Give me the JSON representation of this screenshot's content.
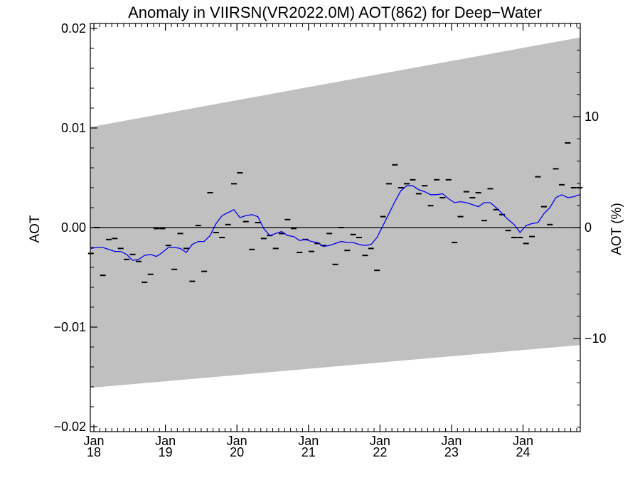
{
  "chart_data": {
    "type": "line",
    "title": "Anomaly in VIIRSN(VR2022.0M) AOT(862) for Deep−Water",
    "ylabel": "AOT",
    "y2label": "AOT (%)",
    "xlabel": "",
    "ylim": [
      -0.0205,
      0.0205
    ],
    "y2lim": [
      -18.4,
      18.4
    ],
    "xlim": [
      2017.95,
      2024.8
    ],
    "yticks": [
      {
        "value": 0.02,
        "label": "0.02"
      },
      {
        "value": 0.01,
        "label": "0.01"
      },
      {
        "value": 0.0,
        "label": "0.00"
      },
      {
        "value": -0.01,
        "label": "−0.01"
      },
      {
        "value": -0.02,
        "label": "−0.02"
      }
    ],
    "y2ticks": [
      {
        "value": 10,
        "label": "10"
      },
      {
        "value": 0,
        "label": "0"
      },
      {
        "value": -10,
        "label": "−10"
      }
    ],
    "xticks": [
      {
        "value": 2018,
        "month": "Jan",
        "year": "18"
      },
      {
        "value": 2019,
        "month": "Jan",
        "year": "19"
      },
      {
        "value": 2020,
        "month": "Jan",
        "year": "20"
      },
      {
        "value": 2021,
        "month": "Jan",
        "year": "21"
      },
      {
        "value": 2022,
        "month": "Jan",
        "year": "22"
      },
      {
        "value": 2023,
        "month": "Jan",
        "year": "23"
      },
      {
        "value": 2024,
        "month": "Jan",
        "year": "24"
      }
    ],
    "band": {
      "x": [
        2017.95,
        2024.8
      ],
      "upper": [
        0.0101,
        0.0191
      ],
      "lower": [
        -0.0161,
        -0.0118
      ],
      "color": "#c0c0c0"
    },
    "zero_line": 0,
    "series": [
      {
        "style": "dash-markers",
        "color": "#000000",
        "x": [
          2017.958,
          2018.042,
          2018.125,
          2018.208,
          2018.292,
          2018.375,
          2018.458,
          2018.542,
          2018.625,
          2018.708,
          2018.792,
          2018.875,
          2018.958,
          2019.042,
          2019.125,
          2019.208,
          2019.292,
          2019.375,
          2019.458,
          2019.542,
          2019.625,
          2019.708,
          2019.792,
          2019.875,
          2019.958,
          2020.042,
          2020.125,
          2020.208,
          2020.292,
          2020.375,
          2020.458,
          2020.542,
          2020.625,
          2020.708,
          2020.792,
          2020.875,
          2020.958,
          2021.042,
          2021.125,
          2021.208,
          2021.292,
          2021.375,
          2021.458,
          2021.542,
          2021.625,
          2021.708,
          2021.792,
          2021.875,
          2021.958,
          2022.042,
          2022.125,
          2022.208,
          2022.292,
          2022.375,
          2022.458,
          2022.542,
          2022.625,
          2022.708,
          2022.792,
          2022.875,
          2022.958,
          2023.042,
          2023.125,
          2023.208,
          2023.292,
          2023.375,
          2023.458,
          2023.542,
          2023.625,
          2023.708,
          2023.792,
          2023.875,
          2023.958,
          2024.042,
          2024.125,
          2024.208,
          2024.292,
          2024.375,
          2024.458,
          2024.542,
          2024.625,
          2024.708,
          2024.792
        ],
        "y": [
          -0.0026,
          0.0,
          -0.0048,
          -0.0012,
          -0.0011,
          -0.0021,
          -0.0032,
          -0.0027,
          -0.0034,
          -0.0055,
          -0.0047,
          -0.0001,
          -0.0001,
          -0.0018,
          -0.0042,
          -0.0006,
          -0.0021,
          -0.0054,
          0.0002,
          -0.0044,
          0.0035,
          -0.0005,
          -0.001,
          0.0003,
          0.0044,
          0.0055,
          0.0006,
          -0.0022,
          0.0005,
          -0.0011,
          -0.0008,
          -0.0021,
          -0.0006,
          0.0008,
          -0.0001,
          -0.0025,
          -0.0012,
          -0.0024,
          -0.0016,
          -0.0018,
          -0.0006,
          -0.0037,
          0.0,
          -0.0023,
          -0.0007,
          -0.001,
          -0.0028,
          -0.0021,
          -0.0043,
          0.0011,
          0.0044,
          0.0063,
          0.004,
          0.0044,
          0.0048,
          0.0034,
          0.0042,
          0.0022,
          0.0048,
          0.003,
          0.0048,
          -0.0015,
          0.0011,
          0.0036,
          0.003,
          0.0035,
          0.0007,
          0.0039,
          0.0018,
          0.0013,
          -0.0003,
          -0.001,
          -0.001,
          -0.0016,
          -0.0009,
          0.0051,
          0.0021,
          0.0003,
          0.0059,
          0.0043,
          0.0085,
          0.004,
          0.004
        ]
      },
      {
        "style": "line",
        "color": "#0000ee",
        "x": [
          2017.958,
          2018.042,
          2018.125,
          2018.208,
          2018.292,
          2018.375,
          2018.458,
          2018.542,
          2018.625,
          2018.708,
          2018.792,
          2018.875,
          2018.958,
          2019.042,
          2019.125,
          2019.208,
          2019.292,
          2019.375,
          2019.458,
          2019.542,
          2019.625,
          2019.708,
          2019.792,
          2019.875,
          2019.958,
          2020.042,
          2020.125,
          2020.208,
          2020.292,
          2020.375,
          2020.458,
          2020.542,
          2020.625,
          2020.708,
          2020.792,
          2020.875,
          2020.958,
          2021.042,
          2021.125,
          2021.208,
          2021.292,
          2021.375,
          2021.458,
          2021.542,
          2021.625,
          2021.708,
          2021.792,
          2021.875,
          2021.958,
          2022.042,
          2022.125,
          2022.208,
          2022.292,
          2022.375,
          2022.458,
          2022.542,
          2022.625,
          2022.708,
          2022.792,
          2022.875,
          2022.958,
          2023.042,
          2023.125,
          2023.208,
          2023.292,
          2023.375,
          2023.458,
          2023.542,
          2023.625,
          2023.708,
          2023.792,
          2023.875,
          2023.958,
          2024.042,
          2024.125,
          2024.208,
          2024.292,
          2024.375,
          2024.458,
          2024.542,
          2024.625,
          2024.708,
          2024.792
        ],
        "y": [
          -0.0021,
          -0.002,
          -0.002,
          -0.0022,
          -0.0024,
          -0.0024,
          -0.0027,
          -0.0033,
          -0.0032,
          -0.0028,
          -0.0027,
          -0.0029,
          -0.0025,
          -0.002,
          -0.002,
          -0.0021,
          -0.0025,
          -0.0017,
          -0.0014,
          -0.0014,
          -0.0008,
          0.0004,
          0.0012,
          0.0015,
          0.0018,
          0.001,
          0.0012,
          0.0013,
          0.0011,
          -0.0001,
          -0.0008,
          -0.0006,
          -0.0004,
          -0.0008,
          -0.0009,
          -0.0013,
          -0.0012,
          -0.0014,
          -0.0015,
          -0.0019,
          -0.0018,
          -0.0016,
          -0.0014,
          -0.0015,
          -0.0015,
          -0.0017,
          -0.0018,
          -0.0017,
          -0.001,
          0.0002,
          0.0014,
          0.0026,
          0.0037,
          0.0042,
          0.0042,
          0.0038,
          0.0036,
          0.0033,
          0.0033,
          0.0034,
          0.0029,
          0.0025,
          0.0026,
          0.0025,
          0.0023,
          0.0021,
          0.0025,
          0.0025,
          0.002,
          0.0014,
          0.0008,
          0.0003,
          -0.0005,
          0.0002,
          0.0004,
          0.0005,
          0.0014,
          0.002,
          0.003,
          0.0033,
          0.003,
          0.0031,
          0.0033
        ]
      }
    ],
    "legend": "none",
    "grid": false
  }
}
